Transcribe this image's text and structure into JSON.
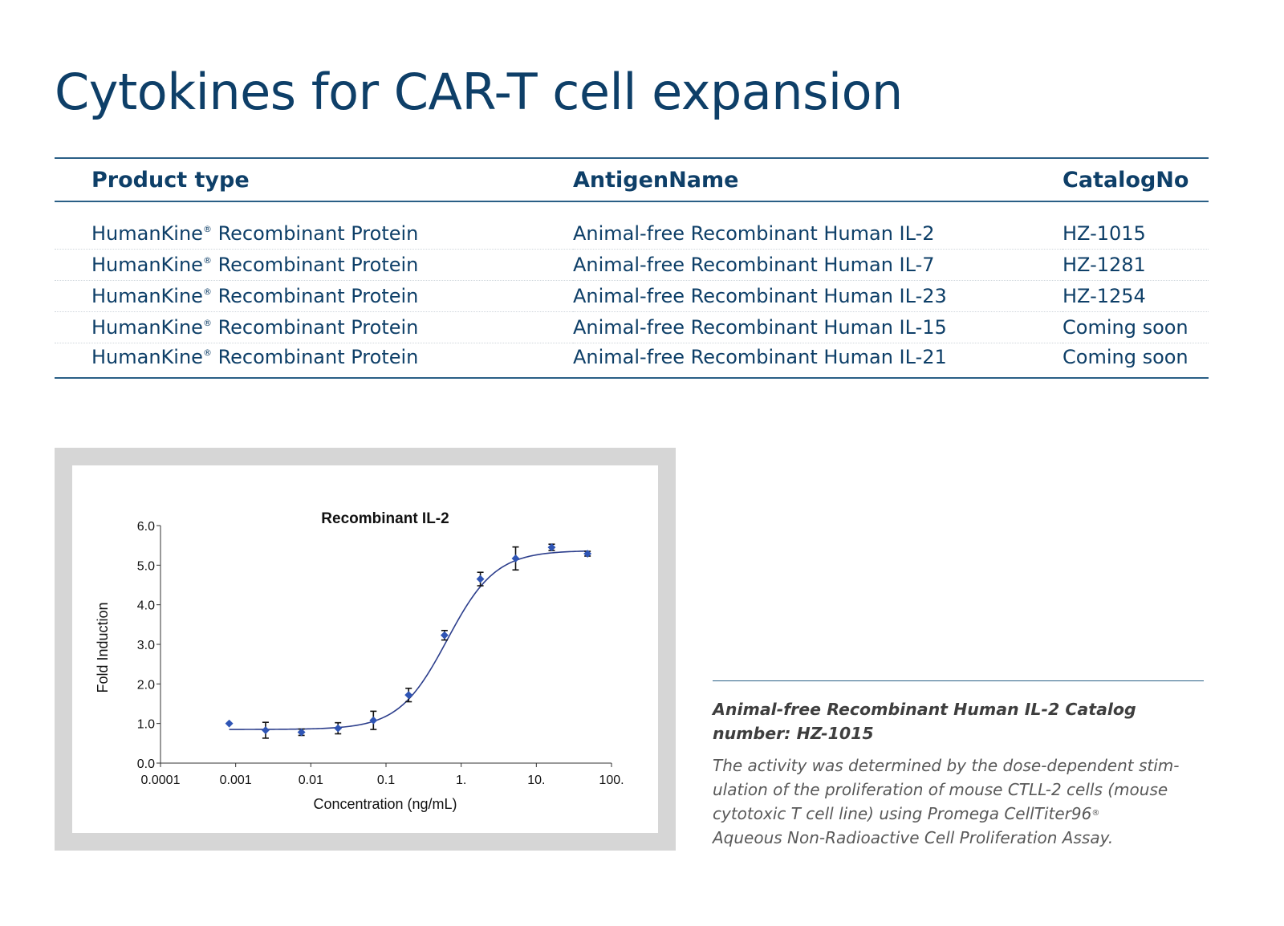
{
  "title": "Cytokines for CAR-T cell expansion",
  "table": {
    "headers": [
      "Product type",
      "AntigenName",
      "CatalogNo"
    ],
    "rows": [
      {
        "product_name": "HumanKine",
        "product_reg": "®",
        "product_suffix": " Recombinant Protein",
        "antigen": "Animal-free Recombinant Human IL-2",
        "catalog": "HZ-1015"
      },
      {
        "product_name": "HumanKine",
        "product_reg": "®",
        "product_suffix": " Recombinant Protein",
        "antigen": "Animal-free Recombinant Human IL-7",
        "catalog": "HZ-1281"
      },
      {
        "product_name": "HumanKine",
        "product_reg": "®",
        "product_suffix": " Recombinant Protein",
        "antigen": "Animal-free Recombinant Human IL-23",
        "catalog": "HZ-1254"
      },
      {
        "product_name": "HumanKine",
        "product_reg": "®",
        "product_suffix": " Recombinant Protein",
        "antigen": "Animal-free Recombinant Human IL-15",
        "catalog": "Coming soon"
      },
      {
        "product_name": "HumanKine",
        "product_reg": "®",
        "product_suffix": " Recombinant Protein",
        "antigen": "Animal-free Recombinant Human IL-21",
        "catalog": "Coming soon"
      }
    ]
  },
  "chart_data": {
    "type": "scatter",
    "title": "Recombinant IL-2",
    "xlabel": "Concentration (ng/mL)",
    "ylabel": "Fold Induction",
    "xscale": "log",
    "xlim": [
      0.0001,
      100
    ],
    "ylim": [
      0,
      6
    ],
    "xticks": [
      0.0001,
      0.001,
      0.01,
      0.1,
      1,
      10,
      100
    ],
    "xtick_labels": [
      "0.0001",
      "0.001",
      "0.01",
      "0.1",
      "1.",
      "10.",
      "100."
    ],
    "yticks": [
      0,
      1,
      2,
      3,
      4,
      5,
      6
    ],
    "ytick_labels": [
      "0.0",
      "1.0",
      "2.0",
      "3.0",
      "4.0",
      "5.0",
      "6.0"
    ],
    "grid": false,
    "points": [
      {
        "x": 0.00082,
        "y": 1.0,
        "err": 0.03
      },
      {
        "x": 0.0025,
        "y": 0.83,
        "err": 0.2
      },
      {
        "x": 0.0075,
        "y": 0.78,
        "err": 0.08
      },
      {
        "x": 0.023,
        "y": 0.88,
        "err": 0.14
      },
      {
        "x": 0.068,
        "y": 1.08,
        "err": 0.23
      },
      {
        "x": 0.2,
        "y": 1.72,
        "err": 0.17
      },
      {
        "x": 0.6,
        "y": 3.23,
        "err": 0.12
      },
      {
        "x": 1.8,
        "y": 4.65,
        "err": 0.17
      },
      {
        "x": 5.3,
        "y": 5.17,
        "err": 0.29
      },
      {
        "x": 16,
        "y": 5.45,
        "err": 0.08
      },
      {
        "x": 48,
        "y": 5.29,
        "err": 0.06
      }
    ],
    "fit": {
      "model": "4PL",
      "bottom": 0.85,
      "top": 5.37,
      "ec50": 0.65,
      "hill": 1.35
    },
    "colors": {
      "points": "#2f55b5",
      "curve": "#2c3e8c",
      "errorbars": "#111111",
      "axis": "#333333"
    }
  },
  "caption": {
    "title": "Animal-free Recombinant Human IL-2  Catalog number: HZ-1015",
    "body_line1": "The activity was determined by the dose-dependent stim-",
    "body_line2": "ulation of the proliferation of mouse CTLL-2 cells (mouse",
    "body_line3": "cytotoxic T cell line) using Promega CellTiter96",
    "body_reg": "®",
    "body_line4": "Aqueous Non-Radioactive Cell Proliferation Assay."
  }
}
